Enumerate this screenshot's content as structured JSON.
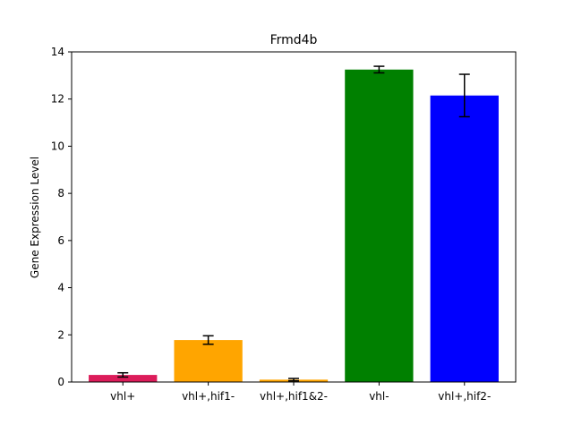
{
  "chart_data": {
    "type": "bar",
    "title": "Frmd4b",
    "xlabel": "",
    "ylabel": "Gene Expression Level",
    "categories": [
      "vhl+",
      "vhl+,hif1-",
      "vhl+,hif1&2-",
      "vhl-",
      "vhl+,hif2-"
    ],
    "values": [
      0.3,
      1.78,
      0.1,
      13.25,
      12.15
    ],
    "errors": [
      0.09,
      0.18,
      0.05,
      0.14,
      0.9
    ],
    "colors": [
      "#dc1c5a",
      "#ffa500",
      "#ffa500",
      "#008000",
      "#0000ff"
    ],
    "ylim": [
      0,
      14
    ],
    "yticks": [
      0,
      2,
      4,
      6,
      8,
      10,
      12,
      14
    ],
    "grid": false,
    "legend": "none"
  }
}
